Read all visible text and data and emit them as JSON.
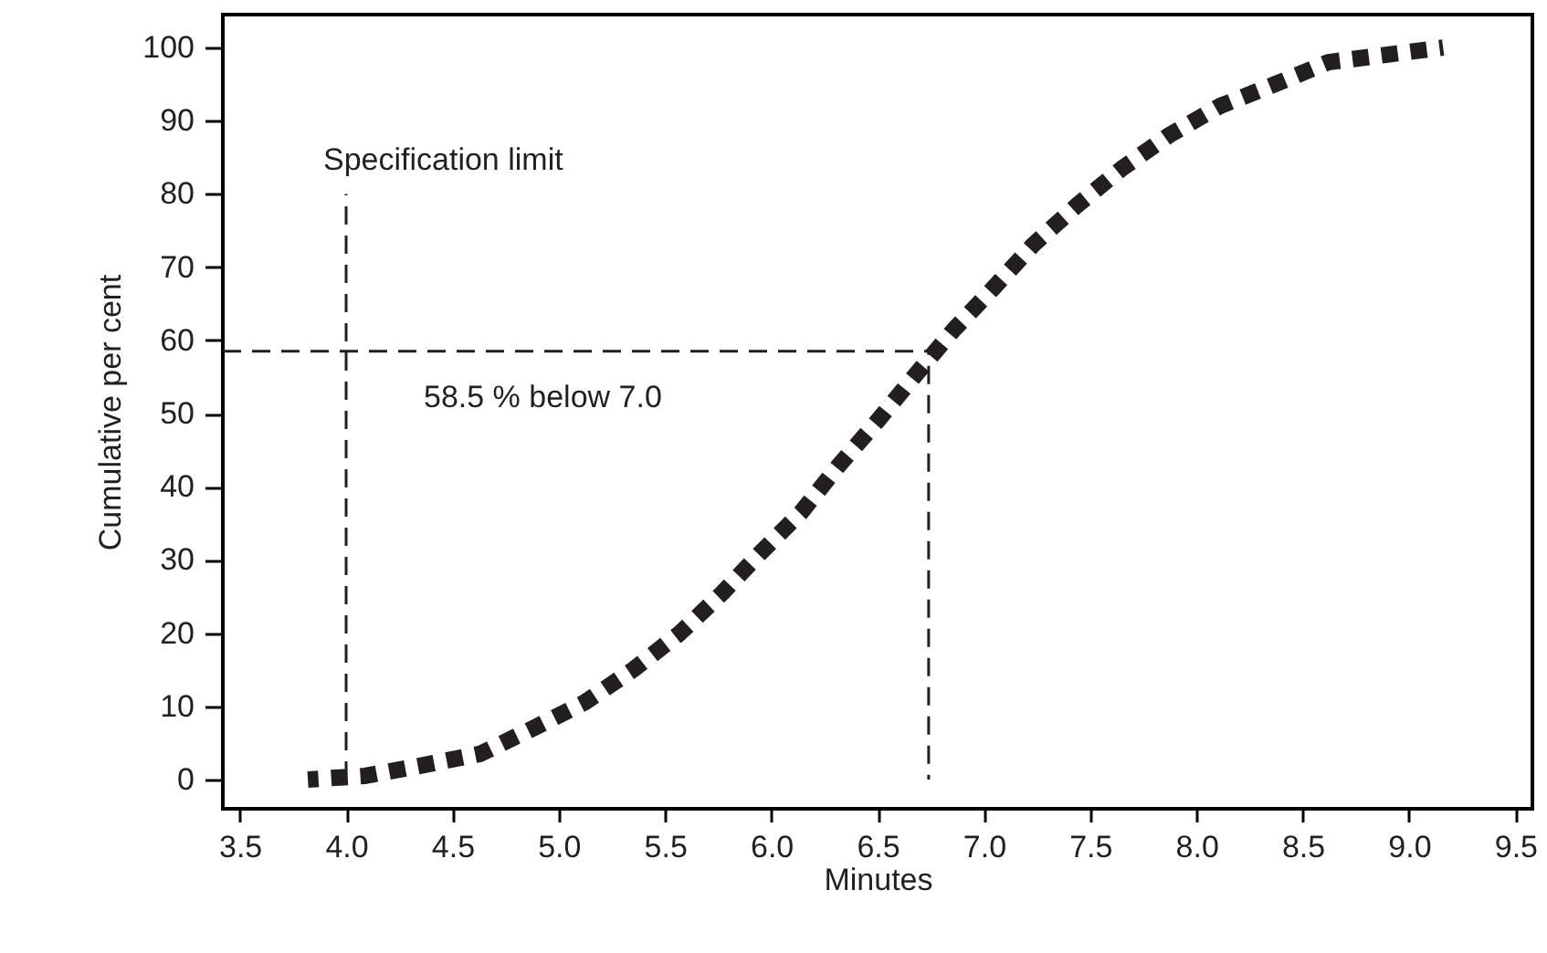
{
  "chart_data": {
    "type": "line",
    "xlabel": "Minutes",
    "ylabel": "Cumulative per cent",
    "xlim": [
      3.42,
      9.58
    ],
    "xticks": [
      {
        "value": 3.5,
        "label": "3.5"
      },
      {
        "value": 4,
        "label": "4.0"
      },
      {
        "value": 4.5,
        "label": "4.5"
      },
      {
        "value": 5,
        "label": "5.0"
      },
      {
        "value": 5.5,
        "label": "5.5"
      },
      {
        "value": 6,
        "label": "6.0"
      },
      {
        "value": 6.5,
        "label": "6.5"
      },
      {
        "value": 7,
        "label": "7.0"
      },
      {
        "value": 7.5,
        "label": "7.5"
      },
      {
        "value": 8,
        "label": "8.0"
      },
      {
        "value": 8.5,
        "label": "8.5"
      },
      {
        "value": 9,
        "label": "9.0"
      },
      {
        "value": 9.5,
        "label": "9.5"
      }
    ],
    "ylim": [
      -4,
      104.5
    ],
    "yticks": [
      0,
      10,
      20,
      30,
      40,
      50,
      60,
      70,
      80,
      90,
      100
    ],
    "grid": false,
    "series": [
      {
        "color": "#231f20",
        "line_style": "dotted",
        "x": [
          3.82,
          4.09,
          4.37,
          4.63,
          4.88,
          5.12,
          5.35,
          5.57,
          5.77,
          5.95,
          6.14,
          6.32,
          6.5,
          6.67,
          6.86,
          7.04,
          7.23,
          7.44,
          7.65,
          7.87,
          8.11,
          8.37,
          8.62,
          8.89,
          9.16
        ],
        "values": [
          0,
          0.5,
          2,
          3.5,
          7,
          10.5,
          15,
          20,
          25.5,
          31,
          36.5,
          43,
          49,
          55,
          61.5,
          67,
          73,
          78.5,
          83.5,
          88,
          92,
          95,
          98,
          99,
          100
        ]
      },
      {
        "color": "#231f20",
        "line_style": "dashed",
        "x": [
          3.42,
          6.74
        ],
        "values": [
          58.5,
          58.5
        ]
      },
      {
        "color": "#231f20",
        "line_style": "dashed",
        "x": [
          6.74,
          6.74
        ],
        "values": [
          0,
          58.5
        ]
      },
      {
        "color": "#231f20",
        "line_style": "dashed",
        "x": [
          4.0,
          4.0
        ],
        "values": [
          0,
          80
        ]
      }
    ],
    "annotations": [
      "Specification limit",
      "58.5 % below 7.0"
    ]
  }
}
